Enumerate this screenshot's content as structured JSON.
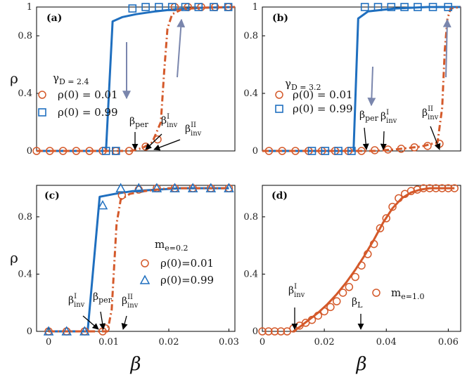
{
  "colors": {
    "blue": "#1f6fbf",
    "orange": "#d4592a",
    "arrow_gray": "#7a86ad",
    "axis": "#000000"
  },
  "chart_data": [
    {
      "panel": "(a)",
      "type": "line",
      "xlim": [
        0,
        0.03
      ],
      "ylim": [
        0,
        1
      ],
      "xticks": [],
      "yticks": [
        0,
        0.4,
        0.8,
        1
      ],
      "ytick_labels": [
        "0",
        "0.4",
        "0.8",
        "1"
      ],
      "ylabel": "ρ",
      "xlabel": "",
      "legend": {
        "title": "γ_D = 2.4",
        "entries": [
          {
            "label": "ρ(0) = 0.01",
            "marker": "circle",
            "color": "#d4592a"
          },
          {
            "label": "ρ(0) = 0.99",
            "marker": "square",
            "color": "#1f6fbf"
          }
        ]
      },
      "series": [
        {
          "name": "ρ(0)=0.99 curve",
          "style": "solid",
          "color": "#1f6fbf",
          "x": [
            0.0,
            0.0105,
            0.0115,
            0.013,
            0.015,
            0.018,
            0.021,
            0.025,
            0.03
          ],
          "y": [
            0.0,
            0.0,
            0.9,
            0.93,
            0.95,
            0.97,
            0.985,
            0.995,
            1.0
          ]
        },
        {
          "name": "ρ(0)=0.01 curve",
          "style": "dashdot",
          "color": "#d4592a",
          "x": [
            0.0,
            0.0143,
            0.016,
            0.0175,
            0.0188,
            0.0193,
            0.0198,
            0.0205,
            0.022,
            0.025,
            0.03
          ],
          "y": [
            0.0,
            0.0,
            0.02,
            0.06,
            0.2,
            0.55,
            0.85,
            0.95,
            0.985,
            0.995,
            1.0
          ]
        },
        {
          "name": "ρ(0)=0.01",
          "style": "markers",
          "marker": "circle",
          "color": "#d4592a",
          "x": [
            0.0,
            0.002,
            0.004,
            0.006,
            0.008,
            0.01,
            0.012,
            0.014,
            0.0165,
            0.0183,
            0.0209,
            0.0229,
            0.0249,
            0.027,
            0.029
          ],
          "y": [
            0.0,
            0.0,
            0.0,
            0.0,
            0.0,
            0.0,
            0.0,
            0.0,
            0.03,
            0.08,
            1.0,
            1.0,
            1.0,
            1.0,
            1.0
          ]
        },
        {
          "name": "ρ(0)=0.99",
          "style": "markers",
          "marker": "square",
          "color": "#1f6fbf",
          "x": [
            0.0105,
            0.012,
            0.0145,
            0.0165,
            0.0185,
            0.0205,
            0.0225,
            0.0245,
            0.0268,
            0.029
          ],
          "y": [
            0.0,
            0.0,
            0.99,
            1.0,
            1.0,
            1.0,
            1.0,
            1.0,
            1.0,
            1.0
          ]
        }
      ],
      "annotations": [
        {
          "text": "β_per"
        },
        {
          "text": "β^I_inv"
        },
        {
          "text": "β^II_inv"
        }
      ]
    },
    {
      "panel": "(b)",
      "type": "line",
      "xlim": [
        0,
        0.03
      ],
      "ylim": [
        0,
        1
      ],
      "xticks": [],
      "yticks": [
        0,
        0.4,
        0.8,
        1
      ],
      "ytick_labels": [
        "0",
        "0.4",
        "0.8",
        "1"
      ],
      "ylabel": "",
      "xlabel": "",
      "legend": {
        "title": "γ_D = 3.2",
        "entries": [
          {
            "label": "ρ(0) = 0.01",
            "marker": "circle",
            "color": "#d4592a"
          },
          {
            "label": "ρ(0) = 0.99",
            "marker": "square",
            "color": "#1f6fbf"
          }
        ]
      },
      "series": [
        {
          "name": "ρ(0)=0.99 curve",
          "style": "solid",
          "color": "#1f6fbf",
          "x": [
            0.0,
            0.0138,
            0.0145,
            0.016,
            0.02,
            0.025,
            0.03
          ],
          "y": [
            0.0,
            0.0,
            0.92,
            0.97,
            0.99,
            1.0,
            1.0
          ]
        },
        {
          "name": "ρ(0)=0.01 curve",
          "style": "dashdot",
          "color": "#d4592a",
          "x": [
            0.0,
            0.017,
            0.02,
            0.024,
            0.0265,
            0.0272,
            0.0276,
            0.028,
            0.0285,
            0.03
          ],
          "y": [
            0.0,
            0.0,
            0.01,
            0.03,
            0.06,
            0.3,
            0.7,
            0.92,
            0.99,
            1.0
          ]
        },
        {
          "name": "ρ(0)=0.01",
          "style": "markers",
          "marker": "circle",
          "color": "#d4592a",
          "x": [
            0.001,
            0.003,
            0.005,
            0.007,
            0.009,
            0.011,
            0.013,
            0.015,
            0.017,
            0.019,
            0.021,
            0.023,
            0.025,
            0.0268
          ],
          "y": [
            0.0,
            0.0,
            0.0,
            0.0,
            0.0,
            0.0,
            0.0,
            0.0,
            0.005,
            0.01,
            0.015,
            0.025,
            0.035,
            0.05
          ]
        },
        {
          "name": "ρ(0)=0.99",
          "style": "markers",
          "marker": "square",
          "color": "#1f6fbf",
          "x": [
            0.0075,
            0.0095,
            0.0115,
            0.0135,
            0.0155,
            0.0175,
            0.0195,
            0.0215,
            0.0235,
            0.0258,
            0.0281
          ],
          "y": [
            0.0,
            0.0,
            0.0,
            0.0,
            1.0,
            1.0,
            1.0,
            1.0,
            1.0,
            1.0,
            1.0
          ]
        }
      ],
      "annotations": [
        {
          "text": "β_per"
        },
        {
          "text": "β^I_inv"
        },
        {
          "text": "β^II_inv"
        }
      ]
    },
    {
      "panel": "(c)",
      "type": "line",
      "xlim": [
        -0.002,
        0.031
      ],
      "ylim": [
        0,
        1.02
      ],
      "xticks": [
        0,
        0.01,
        0.02,
        0.03
      ],
      "xtick_labels": [
        "0",
        "0.01",
        "0.02",
        "0.03"
      ],
      "yticks": [
        0,
        0.4,
        0.8
      ],
      "ytick_labels": [
        "0",
        "0.4",
        "0.8"
      ],
      "ylabel": "ρ",
      "xlabel": "β",
      "legend": {
        "title": "m_e=0.2",
        "entries": [
          {
            "label": "ρ(0)=0.01",
            "marker": "circle",
            "color": "#d4592a"
          },
          {
            "label": "ρ(0)=0.99",
            "marker": "triangle",
            "color": "#1f6fbf"
          }
        ]
      },
      "series": [
        {
          "name": "ρ(0)=0.99 curve",
          "style": "solid",
          "color": "#1f6fbf",
          "x": [
            0.0,
            0.0065,
            0.0085,
            0.011,
            0.014,
            0.018,
            0.022,
            0.03
          ],
          "y": [
            0.0,
            0.0,
            0.94,
            0.96,
            0.98,
            0.99,
            1.0,
            1.0
          ]
        },
        {
          "name": "ρ(0)=0.01 curve",
          "style": "dashdot",
          "color": "#d4592a",
          "x": [
            0.0,
            0.0098,
            0.0105,
            0.0113,
            0.012,
            0.0135,
            0.016,
            0.02,
            0.03
          ],
          "y": [
            0.0,
            0.0,
            0.15,
            0.75,
            0.92,
            0.96,
            0.98,
            1.0,
            1.0
          ]
        },
        {
          "name": "ρ(0)=0.01",
          "style": "markers",
          "marker": "circle",
          "color": "#d4592a",
          "x": [
            0.0,
            0.003,
            0.006,
            0.009,
            0.0095,
            0.0122,
            0.015,
            0.018,
            0.021,
            0.024,
            0.027,
            0.03
          ],
          "y": [
            0.0,
            0.0,
            0.0,
            0.0,
            0.02,
            0.95,
            0.99,
            1.0,
            1.0,
            1.0,
            1.0,
            1.0
          ]
        },
        {
          "name": "ρ(0)=0.99",
          "style": "markers",
          "marker": "triangle",
          "color": "#1f6fbf",
          "x": [
            0.0,
            0.003,
            0.006,
            0.009,
            0.012,
            0.015,
            0.018,
            0.021,
            0.024,
            0.027,
            0.03
          ],
          "y": [
            0.0,
            0.0,
            0.0,
            0.88,
            1.0,
            1.0,
            1.0,
            1.0,
            1.0,
            1.0,
            1.0
          ]
        }
      ],
      "annotations": [
        {
          "text": "β^I_inv"
        },
        {
          "text": "β_per"
        },
        {
          "text": "β^II_inv"
        }
      ]
    },
    {
      "panel": "(d)",
      "type": "line",
      "xlim": [
        0,
        0.064
      ],
      "ylim": [
        0,
        1.02
      ],
      "xticks": [
        0,
        0.02,
        0.04,
        0.06
      ],
      "xtick_labels": [
        "0",
        "0.02",
        "0.04",
        "0.06"
      ],
      "yticks": [
        0,
        0.4,
        0.8
      ],
      "ytick_labels": [
        "0",
        "0.4",
        "0.8"
      ],
      "ylabel": "",
      "xlabel": "β",
      "legend": {
        "title": "",
        "entries": [
          {
            "label": "m_e=1.0",
            "marker": "circle",
            "color": "#d4592a"
          }
        ]
      },
      "series": [
        {
          "name": "theory",
          "style": "solid",
          "color": "#d4592a",
          "x": [
            0.01,
            0.012,
            0.015,
            0.018,
            0.021,
            0.024,
            0.027,
            0.03,
            0.033,
            0.036,
            0.039,
            0.042,
            0.045,
            0.048,
            0.051,
            0.054,
            0.057,
            0.06,
            0.062
          ],
          "y": [
            0.0,
            0.03,
            0.08,
            0.13,
            0.19,
            0.26,
            0.34,
            0.43,
            0.53,
            0.64,
            0.76,
            0.86,
            0.93,
            0.97,
            0.99,
            1.0,
            1.0,
            1.0,
            1.0
          ]
        },
        {
          "name": "simulation",
          "style": "markers",
          "marker": "circle",
          "color": "#d4592a",
          "x": [
            0.0,
            0.002,
            0.004,
            0.006,
            0.008,
            0.01,
            0.012,
            0.014,
            0.016,
            0.018,
            0.02,
            0.022,
            0.024,
            0.026,
            0.028,
            0.03,
            0.032,
            0.034,
            0.036,
            0.038,
            0.04,
            0.042,
            0.044,
            0.046,
            0.048,
            0.05,
            0.052,
            0.054,
            0.056,
            0.058,
            0.06,
            0.062
          ],
          "y": [
            0.0,
            0.0,
            0.0,
            0.0,
            0.0,
            0.02,
            0.04,
            0.06,
            0.08,
            0.11,
            0.14,
            0.17,
            0.21,
            0.27,
            0.31,
            0.38,
            0.46,
            0.54,
            0.61,
            0.72,
            0.79,
            0.87,
            0.93,
            0.96,
            0.98,
            0.99,
            1.0,
            1.0,
            1.0,
            1.0,
            1.0,
            1.0
          ]
        }
      ],
      "annotations": [
        {
          "text": "β^I_inv"
        },
        {
          "text": "β_L"
        }
      ]
    }
  ]
}
